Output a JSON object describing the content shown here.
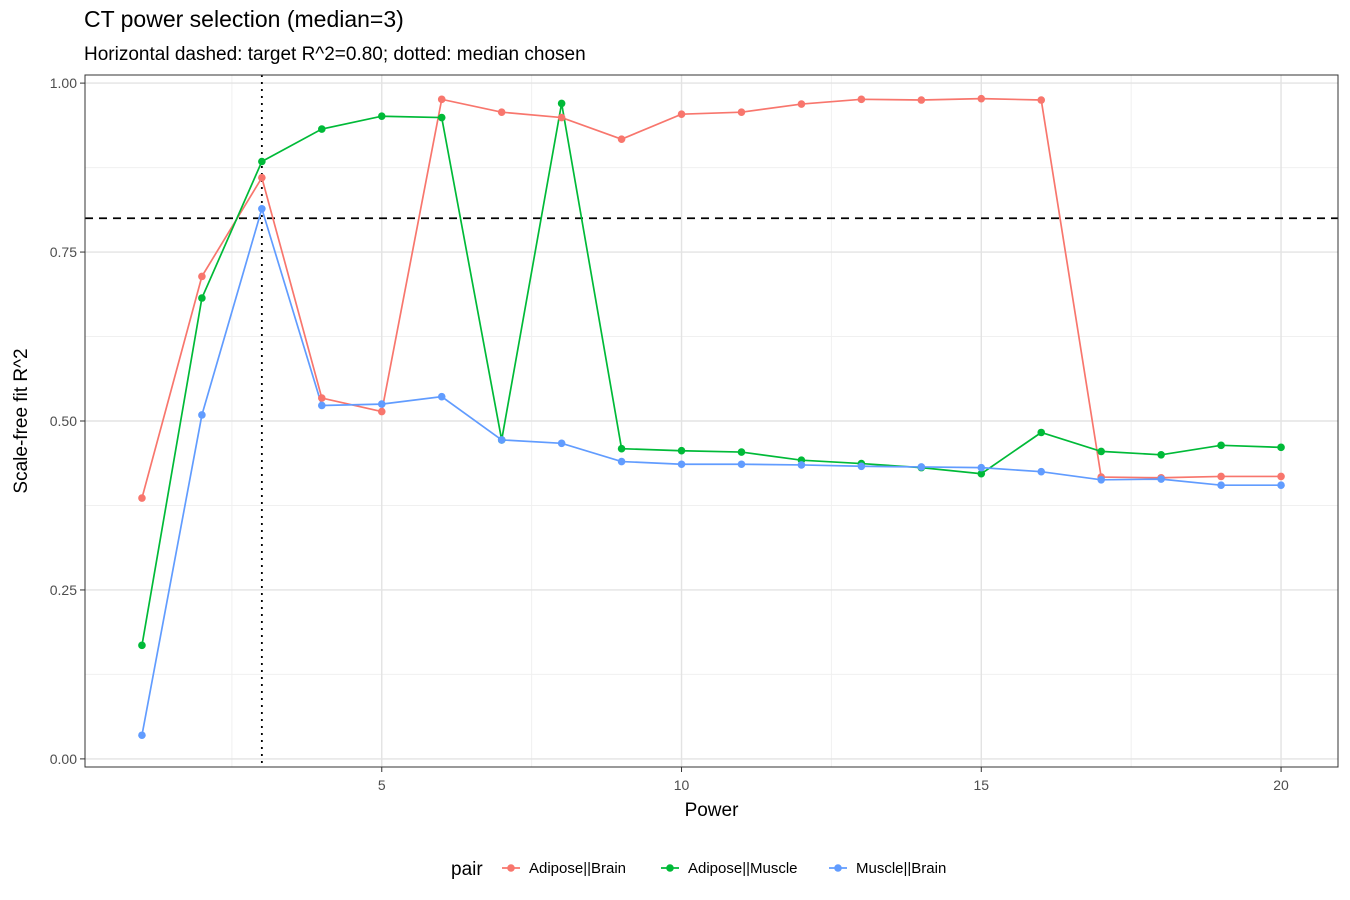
{
  "chart_data": {
    "type": "line",
    "title": "CT power selection (median=3)",
    "subtitle": "Horizontal dashed: target R^2=0.80; dotted: median chosen",
    "xlabel": "Power",
    "ylabel": "Scale-free fit R^2",
    "xlim": [
      0.05,
      20.95
    ],
    "ylim": [
      -0.012,
      1.012
    ],
    "x_ticks": [
      5,
      10,
      15,
      20
    ],
    "y_ticks": [
      0.0,
      0.25,
      0.5,
      0.75,
      1.0
    ],
    "x_tick_labels": [
      "5",
      "10",
      "15",
      "20"
    ],
    "y_tick_labels": [
      "0.00",
      "0.25",
      "0.50",
      "0.75",
      "1.00"
    ],
    "grid": true,
    "hline": {
      "y": 0.8,
      "style": "dashed"
    },
    "vline": {
      "x": 3,
      "style": "dotted"
    },
    "legend": {
      "title": "pair",
      "position": "bottom"
    },
    "x": [
      1,
      2,
      3,
      4,
      5,
      6,
      7,
      8,
      9,
      10,
      11,
      12,
      13,
      14,
      15,
      16,
      17,
      18,
      19,
      20
    ],
    "series": [
      {
        "name": "Adipose||Brain",
        "color": "#F8766D",
        "values": [
          0.386,
          0.714,
          0.86,
          0.534,
          0.514,
          0.976,
          0.957,
          0.949,
          0.917,
          0.954,
          0.957,
          0.969,
          0.976,
          0.975,
          0.977,
          0.975,
          0.417,
          0.416,
          0.418,
          0.418
        ]
      },
      {
        "name": "Adipose||Muscle",
        "color": "#00BA38",
        "values": [
          0.168,
          0.682,
          0.884,
          0.932,
          0.951,
          0.949,
          0.472,
          0.97,
          0.459,
          0.456,
          0.454,
          0.442,
          0.437,
          0.431,
          0.422,
          0.483,
          0.455,
          0.45,
          0.464,
          0.461
        ]
      },
      {
        "name": "Muscle||Brain",
        "color": "#619CFF",
        "values": [
          0.035,
          0.509,
          0.814,
          0.523,
          0.525,
          0.536,
          0.472,
          0.467,
          0.44,
          0.436,
          0.436,
          0.435,
          0.433,
          0.432,
          0.431,
          0.425,
          0.413,
          0.414,
          0.405,
          0.405
        ]
      }
    ]
  }
}
